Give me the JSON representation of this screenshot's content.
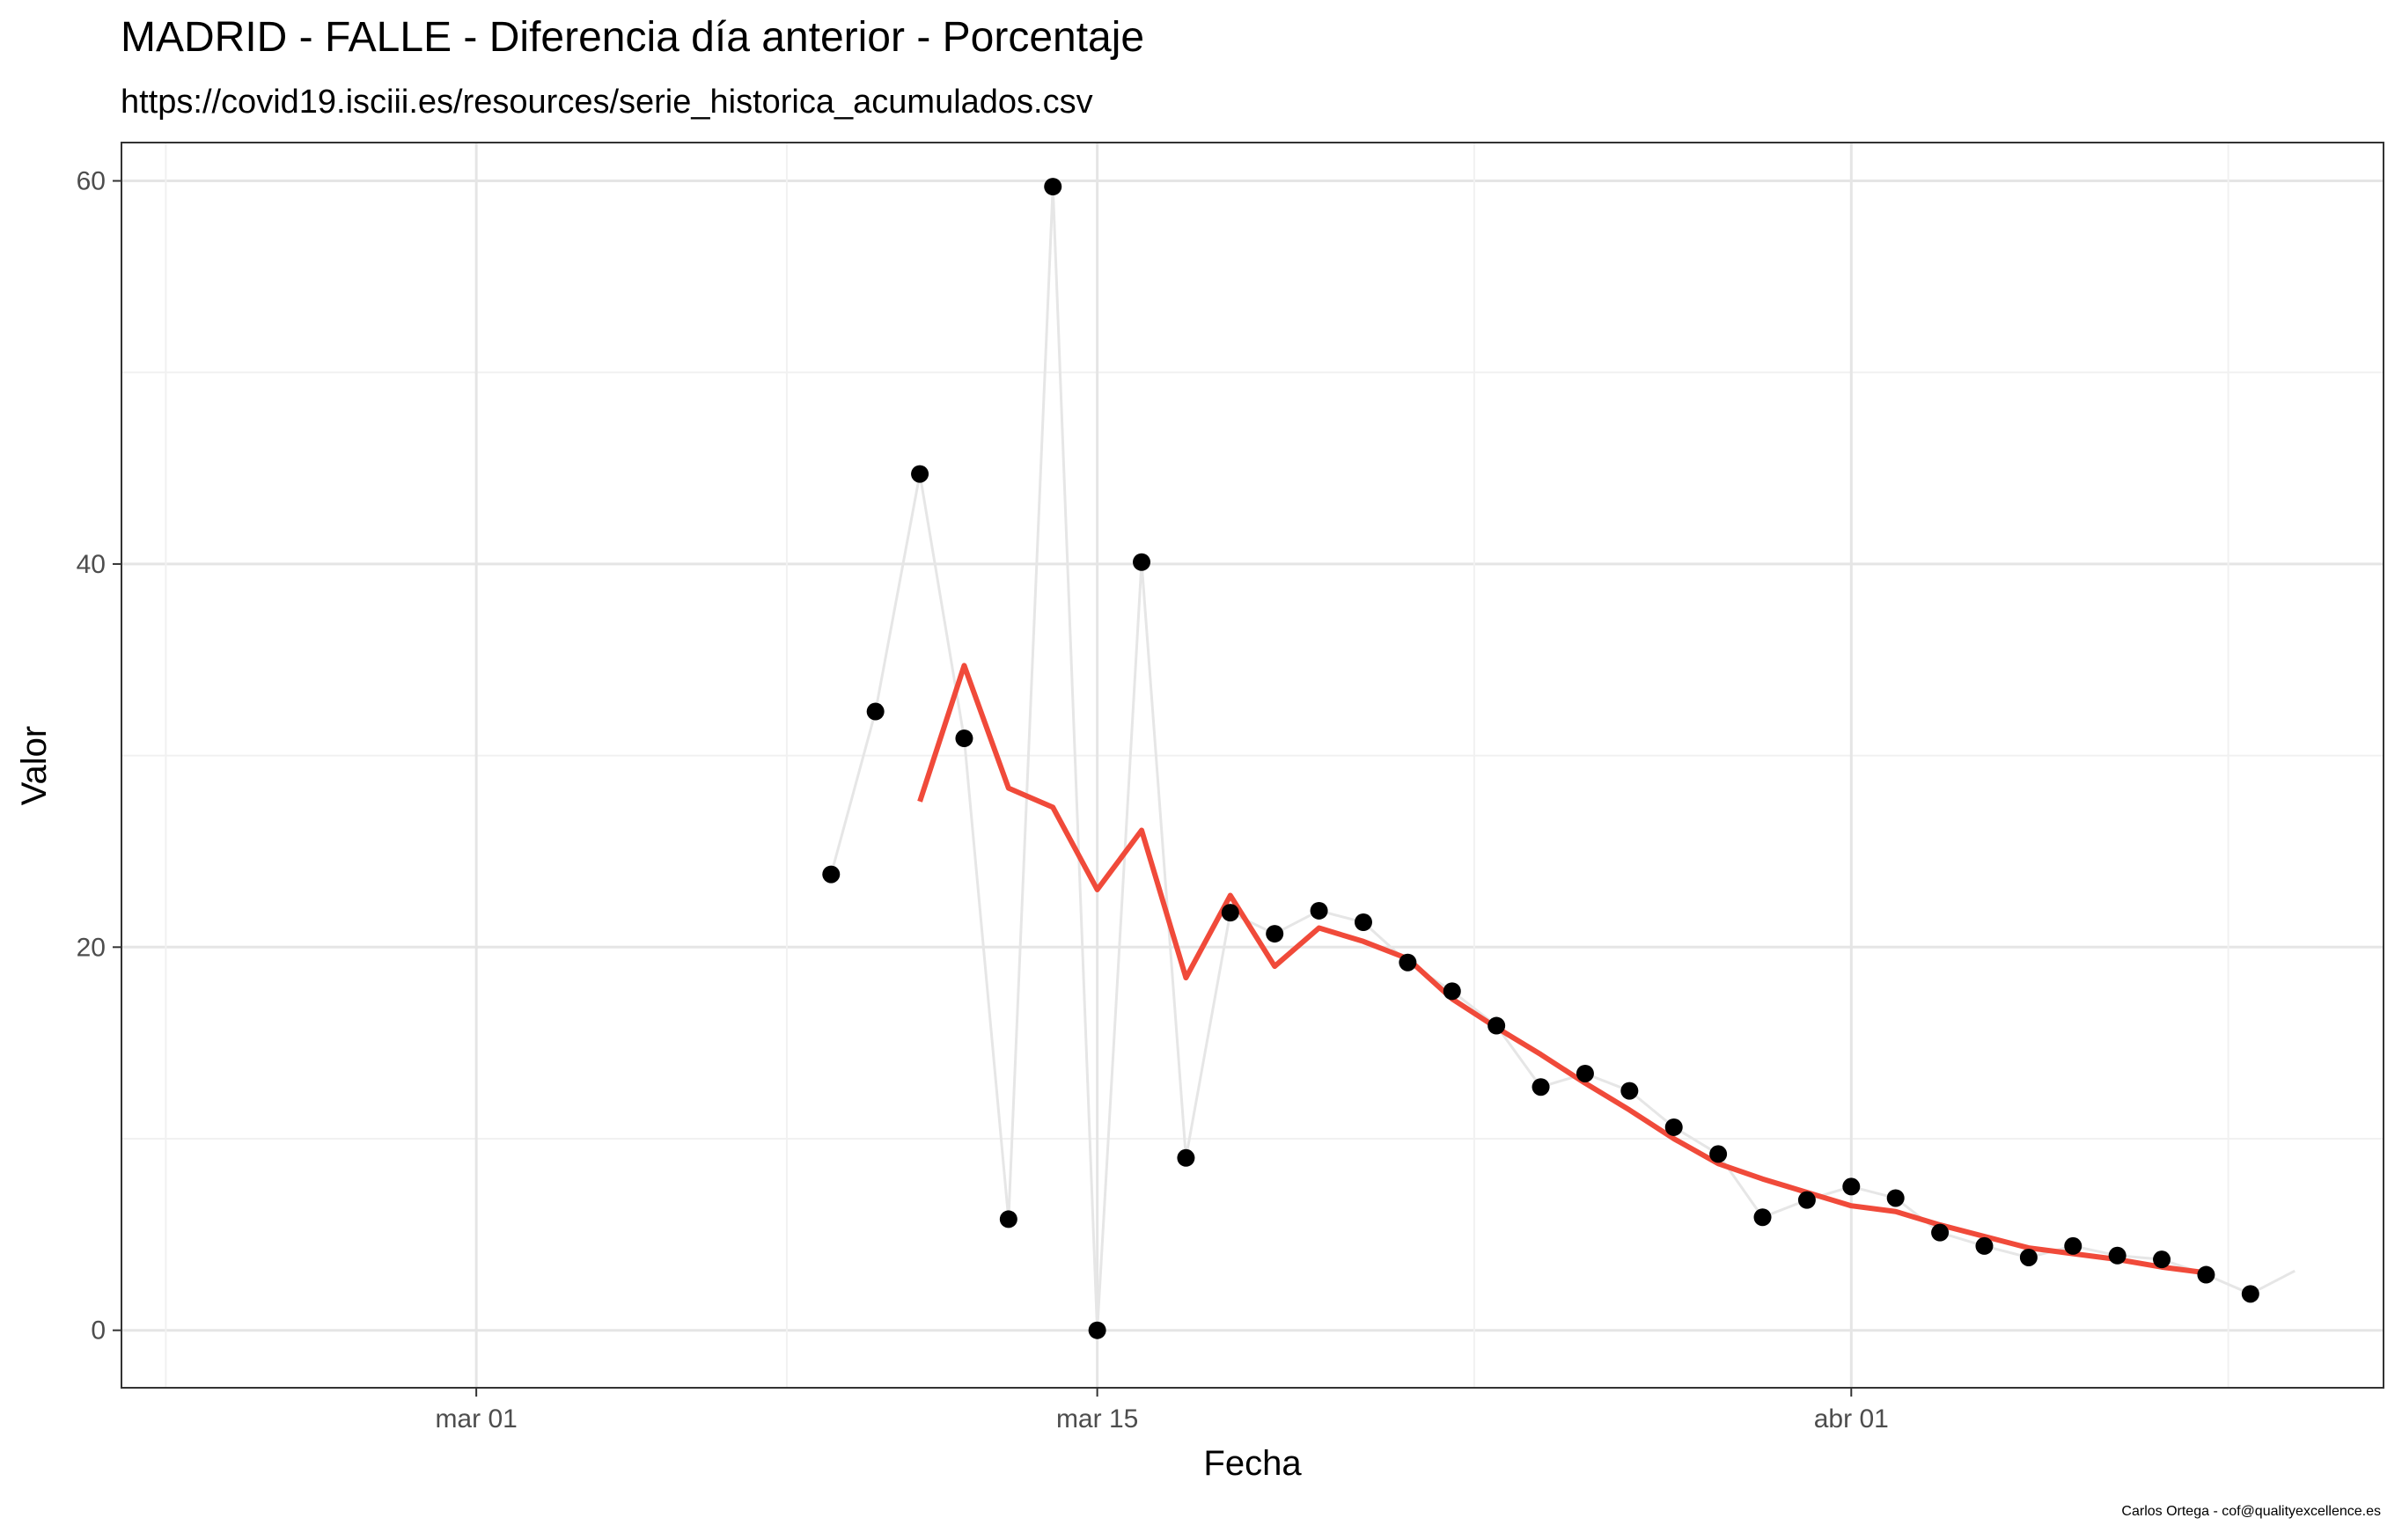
{
  "chart_data": {
    "type": "line",
    "title": "MADRID - FALLE - Diferencia día anterior - Porcentaje",
    "subtitle": "https://covid19.isciii.es/resources/serie_historica_acumulados.csv",
    "xlabel": "Fecha",
    "ylabel": "Valor",
    "caption": "Carlos Ortega - cof@qualityexcellence.es",
    "x_tick_labels": [
      "mar 01",
      "mar 15",
      "abr 01"
    ],
    "x_ticks": [
      "2020-03-01",
      "2020-03-15",
      "2020-04-01"
    ],
    "y_ticks": [
      0,
      20,
      40,
      60
    ],
    "xlim": [
      "2020-02-22",
      "2020-04-13"
    ],
    "ylim": [
      -3,
      62
    ],
    "grid": true,
    "colors": {
      "points": "#000000",
      "raw_line": "#e6e6e6",
      "smooth_line": "#f04a3a",
      "grid_major": "#e5e5e5",
      "grid_minor": "#f1f1f1",
      "panel_border": "#333333"
    },
    "series": [
      {
        "kind": "points",
        "x": [
          "2020-03-09",
          "2020-03-10",
          "2020-03-11",
          "2020-03-12",
          "2020-03-13",
          "2020-03-14",
          "2020-03-15",
          "2020-03-16",
          "2020-03-17",
          "2020-03-18",
          "2020-03-19",
          "2020-03-20",
          "2020-03-21",
          "2020-03-22",
          "2020-03-23",
          "2020-03-24",
          "2020-03-25",
          "2020-03-26",
          "2020-03-27",
          "2020-03-28",
          "2020-03-29",
          "2020-03-30",
          "2020-03-31",
          "2020-04-01",
          "2020-04-02",
          "2020-04-03",
          "2020-04-04",
          "2020-04-05",
          "2020-04-06",
          "2020-04-07",
          "2020-04-08",
          "2020-04-09",
          "2020-04-10"
        ],
        "values": [
          23.8,
          32.3,
          44.7,
          30.9,
          5.8,
          59.7,
          0.0,
          40.1,
          9.0,
          21.8,
          20.7,
          21.9,
          21.3,
          19.2,
          17.7,
          15.9,
          12.7,
          13.4,
          12.5,
          10.6,
          9.2,
          5.9,
          6.8,
          7.5,
          6.9,
          5.1,
          4.4,
          3.8,
          4.4,
          3.9,
          3.7,
          2.9,
          1.9
        ]
      },
      {
        "kind": "line",
        "x": [
          "2020-03-09",
          "2020-03-10",
          "2020-03-11",
          "2020-03-12",
          "2020-03-13",
          "2020-03-14",
          "2020-03-15",
          "2020-03-16",
          "2020-03-17",
          "2020-03-18",
          "2020-03-19",
          "2020-03-20",
          "2020-03-21",
          "2020-03-22",
          "2020-03-23",
          "2020-03-24",
          "2020-03-25",
          "2020-03-26",
          "2020-03-27",
          "2020-03-28",
          "2020-03-29",
          "2020-03-30",
          "2020-03-31",
          "2020-04-01",
          "2020-04-02",
          "2020-04-03",
          "2020-04-04",
          "2020-04-05",
          "2020-04-06",
          "2020-04-07",
          "2020-04-08",
          "2020-04-09",
          "2020-04-10",
          "2020-04-11"
        ],
        "values": [
          23.8,
          32.3,
          44.7,
          30.9,
          5.8,
          59.7,
          0.0,
          40.1,
          9.0,
          21.8,
          20.7,
          21.9,
          21.3,
          19.2,
          17.7,
          15.9,
          12.7,
          13.4,
          12.5,
          10.6,
          9.2,
          5.9,
          6.8,
          7.5,
          6.9,
          5.1,
          4.4,
          3.8,
          4.4,
          3.9,
          3.7,
          2.9,
          1.9,
          3.1
        ]
      },
      {
        "kind": "smooth",
        "x": [
          "2020-03-11",
          "2020-03-12",
          "2020-03-13",
          "2020-03-14",
          "2020-03-15",
          "2020-03-16",
          "2020-03-17",
          "2020-03-18",
          "2020-03-19",
          "2020-03-20",
          "2020-03-21",
          "2020-03-22",
          "2020-03-23",
          "2020-03-24",
          "2020-03-25",
          "2020-03-26",
          "2020-03-27",
          "2020-03-28",
          "2020-03-29",
          "2020-03-30",
          "2020-03-31",
          "2020-04-01",
          "2020-04-02",
          "2020-04-03",
          "2020-04-04",
          "2020-04-05",
          "2020-04-06",
          "2020-04-07",
          "2020-04-08",
          "2020-04-09"
        ],
        "values": [
          27.6,
          34.7,
          28.3,
          27.3,
          23.0,
          26.1,
          18.4,
          22.7,
          19.0,
          21.0,
          20.3,
          19.4,
          17.3,
          15.8,
          14.4,
          12.9,
          11.5,
          10.0,
          8.7,
          7.9,
          7.2,
          6.5,
          6.2,
          5.5,
          4.9,
          4.3,
          4.0,
          3.7,
          3.3,
          3.0
        ]
      }
    ]
  }
}
